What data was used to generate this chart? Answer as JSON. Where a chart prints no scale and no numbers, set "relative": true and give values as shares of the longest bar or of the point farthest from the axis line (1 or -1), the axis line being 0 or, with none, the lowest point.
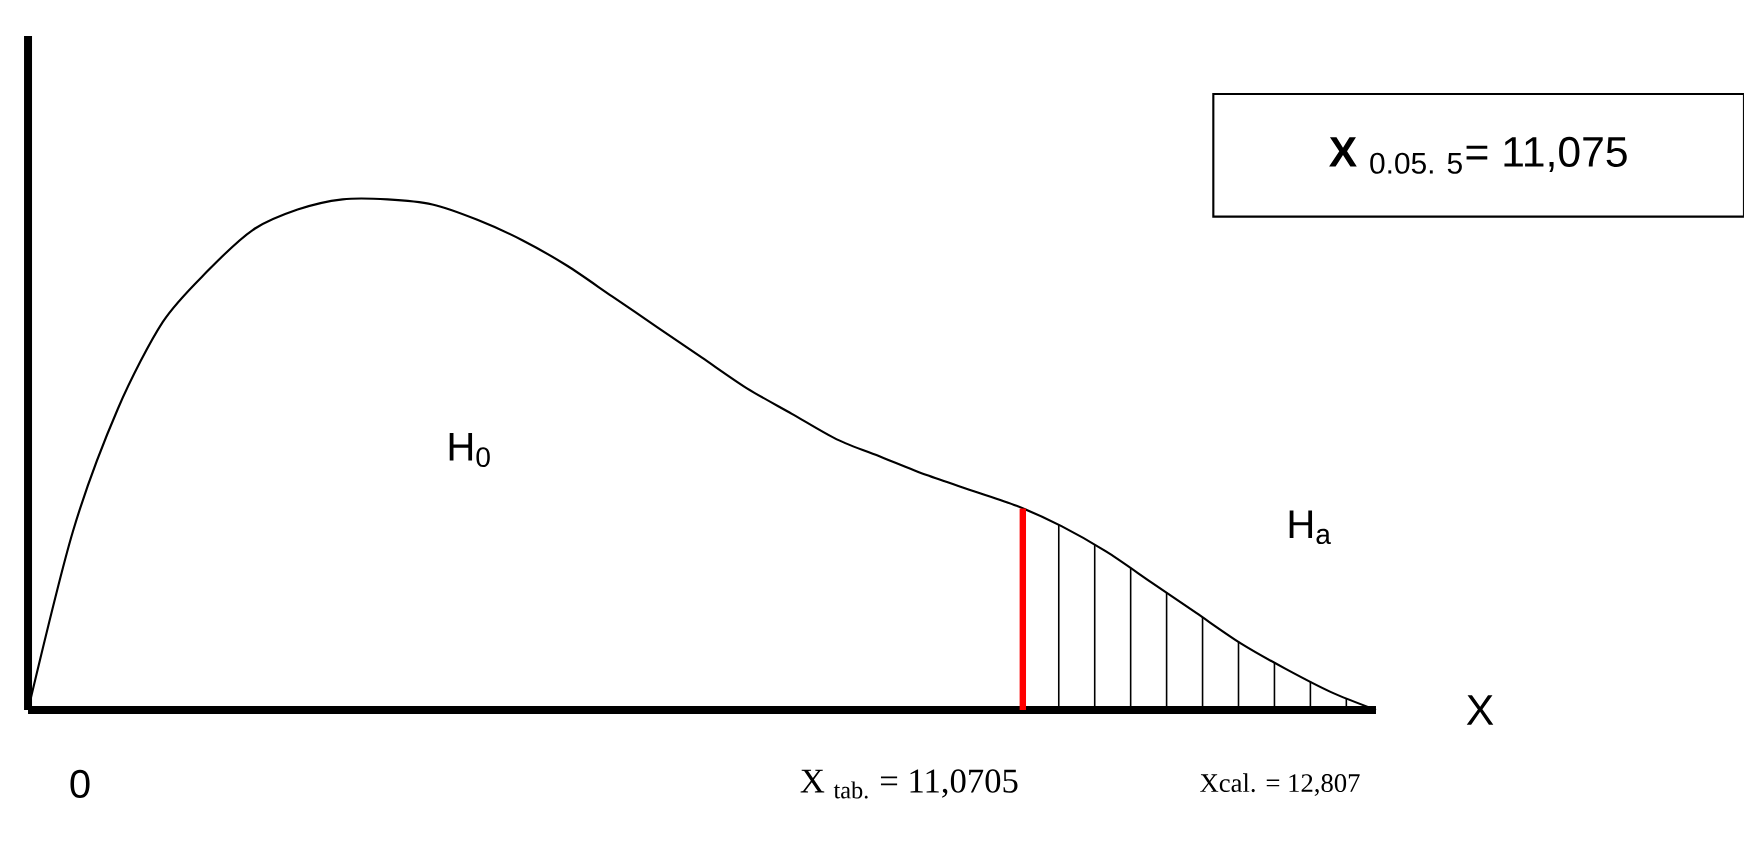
{
  "chart_data": {
    "type": "line",
    "relative": true,
    "color": "#000000",
    "categories": [
      null,
      null,
      null,
      null,
      null,
      null,
      null,
      null,
      null,
      null,
      null,
      null,
      null,
      null,
      null,
      null,
      null,
      null,
      null,
      null,
      null,
      null,
      null,
      null,
      null,
      null,
      null,
      null,
      null,
      null,
      null
    ],
    "values": [
      0,
      0.35,
      0.59,
      0.76,
      0.86,
      0.94,
      0.98,
      1.0,
      1.0,
      0.99,
      0.96,
      0.92,
      0.87,
      0.81,
      0.75,
      0.69,
      0.63,
      0.58,
      0.53,
      0.495,
      0.46,
      0.43,
      0.4,
      0.36,
      0.31,
      0.25,
      0.19,
      0.13,
      0.08,
      0.035,
      0
    ],
    "xlabel": "X",
    "annotations": [
      "**X** $_{0.05. 5}$= 11,075",
      "H$_{0}$",
      "H$_{a}$",
      "Xcal. = 12,807",
      "0",
      "X $_{tab.}$ = 11,0705"
    ]
  }
}
